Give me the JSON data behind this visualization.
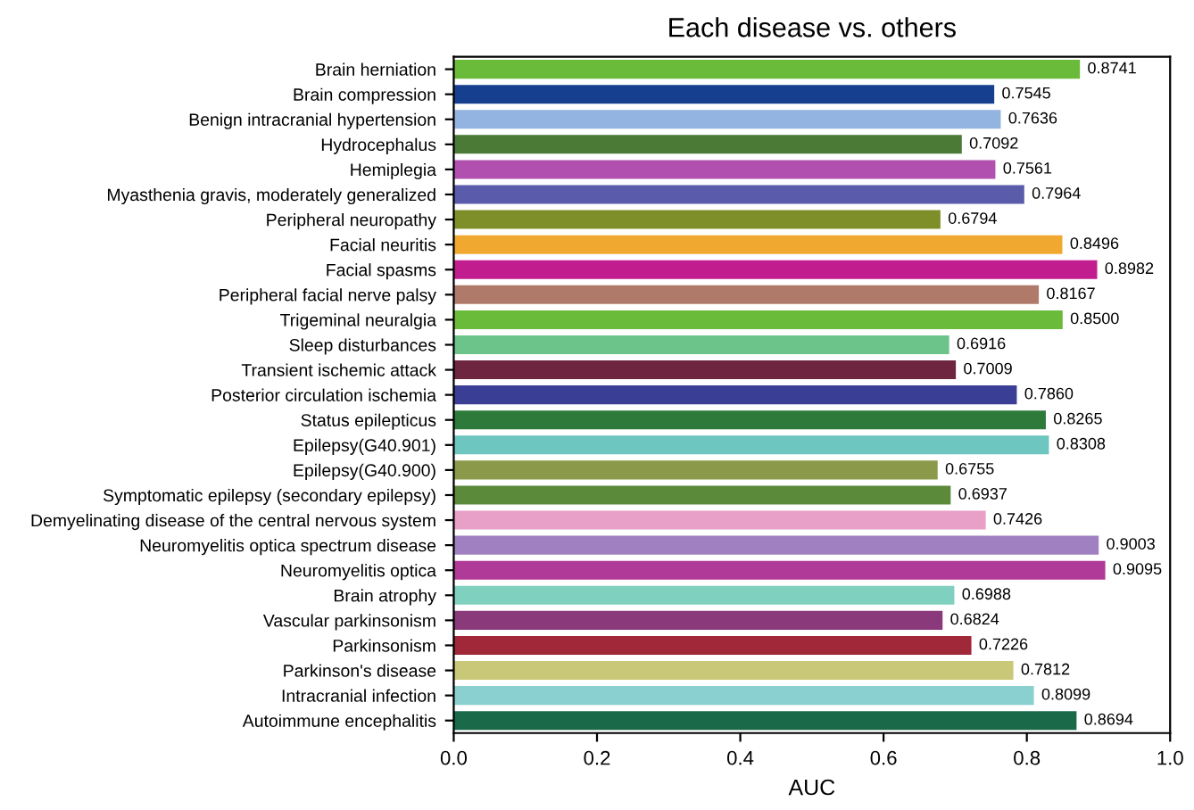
{
  "chart_data": {
    "type": "bar",
    "orientation": "horizontal",
    "title": "Each disease vs. others",
    "xlabel": "AUC",
    "categories": [
      "Brain herniation",
      "Brain compression",
      "Benign intracranial hypertension",
      "Hydrocephalus",
      "Hemiplegia",
      "Myasthenia gravis, moderately generalized",
      "Peripheral neuropathy",
      "Facial neuritis",
      "Facial spasms",
      "Peripheral facial nerve palsy",
      "Trigeminal neuralgia",
      "Sleep disturbances",
      "Transient ischemic attack",
      "Posterior circulation ischemia",
      "Status epilepticus",
      "Epilepsy(G40.901)",
      "Epilepsy(G40.900)",
      "Symptomatic epilepsy (secondary epilepsy)",
      "Demyelinating disease of the central nervous system",
      "Neuromyelitis optica spectrum disease",
      "Neuromyelitis optica",
      "Brain atrophy",
      "Vascular parkinsonism",
      "Parkinsonism",
      "Parkinson's disease",
      "Intracranial infection",
      "Autoimmune encephalitis"
    ],
    "values": [
      0.8741,
      0.7545,
      0.7636,
      0.7092,
      0.7561,
      0.7964,
      0.6794,
      0.8496,
      0.8982,
      0.8167,
      0.85,
      0.6916,
      0.7009,
      0.786,
      0.8265,
      0.8308,
      0.6755,
      0.6937,
      0.7426,
      0.9003,
      0.9095,
      0.6988,
      0.6824,
      0.7226,
      0.7812,
      0.8099,
      0.8694
    ],
    "value_labels": [
      "0.8741",
      "0.7545",
      "0.7636",
      "0.7092",
      "0.7561",
      "0.7964",
      "0.6794",
      "0.8496",
      "0.8982",
      "0.8167",
      "0.8500",
      "0.6916",
      "0.7009",
      "0.7860",
      "0.8265",
      "0.8308",
      "0.6755",
      "0.6937",
      "0.7426",
      "0.9003",
      "0.9095",
      "0.6988",
      "0.6824",
      "0.7226",
      "0.7812",
      "0.8099",
      "0.8694"
    ],
    "colors": [
      "#6bbb3a",
      "#163f8f",
      "#93b3e0",
      "#4a7a35",
      "#b250b0",
      "#5b5bab",
      "#7e8f2a",
      "#f0a830",
      "#c21d8f",
      "#b07a6a",
      "#6bbb3a",
      "#6cc48a",
      "#6e2540",
      "#3a3f95",
      "#2e7a3a",
      "#6ec6c0",
      "#8a9a4a",
      "#5a8a3a",
      "#e8a0c8",
      "#a080c0",
      "#b03a98",
      "#80d0c0",
      "#8a3a7a",
      "#a02838",
      "#c8c878",
      "#8ad0d0",
      "#1a6a4a"
    ],
    "xlim": [
      0,
      1.0
    ],
    "xticks": [
      {
        "value": 0,
        "label": "0.0"
      },
      {
        "value": 0.2,
        "label": "0.2"
      },
      {
        "value": 0.4,
        "label": "0.4"
      },
      {
        "value": 0.6,
        "label": "0.6"
      },
      {
        "value": 0.8,
        "label": "0.8"
      },
      {
        "value": 1.0,
        "label": "1.0"
      }
    ],
    "grid": false
  }
}
